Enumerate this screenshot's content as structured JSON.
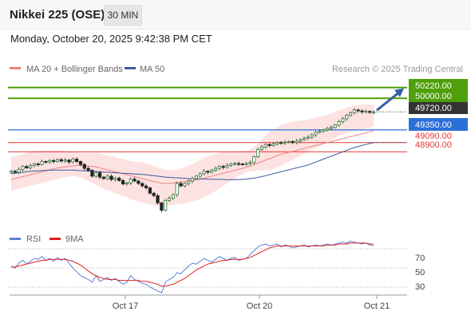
{
  "header": {
    "title": "Nikkei 225 (OSE)",
    "interval": "30 MIN",
    "datetime": "Monday, October 20, 2025 9:42:38 PM CET"
  },
  "legend": {
    "ma20_bb": "MA 20 + Bollinger Bands",
    "ma50": "MA 50",
    "credit": "Research © 2025 Trading Central",
    "rsi": "RSI",
    "ma9": "9MA"
  },
  "colors": {
    "resistance": "#4e9f0a",
    "pivot": "#2c6fd6",
    "support": "#e53935",
    "current": "#333333",
    "bollinger_fill": "#fde2e2",
    "ma20": "#f08080",
    "ma50": "#3b5a99",
    "rsi": "#5b7fd6",
    "rsi_ma": "#e02020",
    "arrow": "#2f5fa8"
  },
  "chart_data": [
    {
      "type": "candlestick",
      "title": "Nikkei 225 (OSE)",
      "ylim": [
        47350,
        50380
      ],
      "x_ticks": [
        "Oct 17",
        "Oct 20",
        "Oct 21"
      ],
      "levels": [
        {
          "label": "50220.00",
          "value": 50220,
          "kind": "resistance"
        },
        {
          "label": "50000.00",
          "value": 50000,
          "kind": "resistance"
        },
        {
          "label": "49720.00",
          "value": 49720,
          "kind": "current"
        },
        {
          "label": "49350.00",
          "value": 49350,
          "kind": "pivot"
        },
        {
          "label": "49090.00",
          "value": 49090,
          "kind": "support"
        },
        {
          "label": "48900.00",
          "value": 48900,
          "kind": "support"
        }
      ],
      "closes": [
        48500,
        48480,
        48540,
        48600,
        48570,
        48620,
        48650,
        48640,
        48700,
        48690,
        48720,
        48700,
        48740,
        48710,
        48730,
        48690,
        48750,
        48700,
        48640,
        48560,
        48520,
        48400,
        48470,
        48380,
        48350,
        48400,
        48330,
        48360,
        48310,
        48240,
        48260,
        48340,
        48300,
        48250,
        48200,
        48160,
        48050,
        48000,
        47850,
        47700,
        47900,
        47950,
        48020,
        48250,
        48200,
        48250,
        48300,
        48350,
        48400,
        48450,
        48500,
        48480,
        48520,
        48560,
        48600,
        48580,
        48620,
        48650,
        48660,
        48650,
        48640,
        48660,
        48680,
        48800,
        48950,
        49000,
        49050,
        49030,
        49060,
        49090,
        49080,
        49100,
        49110,
        49090,
        49120,
        49150,
        49180,
        49200,
        49250,
        49300,
        49320,
        49350,
        49380,
        49400,
        49450,
        49520,
        49580,
        49650,
        49700,
        49760,
        49740,
        49720,
        49730,
        49710,
        49720
      ],
      "ma20": [
        48330,
        48350,
        48370,
        48390,
        48410,
        48430,
        48450,
        48470,
        48490,
        48510,
        48530,
        48550,
        48570,
        48580,
        48590,
        48600,
        48610,
        48620,
        48620,
        48620,
        48610,
        48600,
        48590,
        48570,
        48550,
        48530,
        48510,
        48490,
        48470,
        48450,
        48430,
        48410,
        48390,
        48370,
        48350,
        48330,
        48310,
        48290,
        48270,
        48250,
        48250,
        48250,
        48260,
        48270,
        48280,
        48290,
        48300,
        48310,
        48320,
        48340,
        48360,
        48380,
        48400,
        48420,
        48440,
        48460,
        48480,
        48500,
        48520,
        48540,
        48560,
        48580,
        48610,
        48640,
        48670,
        48700,
        48730,
        48760,
        48790,
        48820,
        48850,
        48870,
        48890,
        48910,
        48930,
        48950,
        48970,
        48990,
        49010,
        49030,
        49050,
        49070,
        49090,
        49110,
        49130,
        49150,
        49170,
        49190,
        49210,
        49230,
        49250,
        49270,
        49290,
        49310,
        49340
      ],
      "ma50": [
        48450,
        48460,
        48470,
        48480,
        48490,
        48500,
        48505,
        48510,
        48515,
        48520,
        48525,
        48525,
        48525,
        48525,
        48525,
        48525,
        48525,
        48520,
        48515,
        48510,
        48505,
        48500,
        48495,
        48490,
        48485,
        48480,
        48475,
        48470,
        48465,
        48460,
        48455,
        48450,
        48445,
        48440,
        48435,
        48430,
        48420,
        48410,
        48400,
        48390,
        48380,
        48375,
        48370,
        48365,
        48360,
        48355,
        48350,
        48348,
        48346,
        48344,
        48342,
        48340,
        48338,
        48336,
        48334,
        48332,
        48330,
        48330,
        48330,
        48330,
        48335,
        48340,
        48350,
        48360,
        48375,
        48390,
        48410,
        48430,
        48450,
        48470,
        48490,
        48510,
        48530,
        48550,
        48570,
        48590,
        48610,
        48630,
        48660,
        48690,
        48720,
        48750,
        48780,
        48810,
        48840,
        48870,
        48900,
        48930,
        48960,
        48990,
        49010,
        49030,
        49050,
        49070,
        49090
      ],
      "bb_upper": [
        48800,
        48810,
        48830,
        48850,
        48880,
        48900,
        48910,
        48920,
        48930,
        48930,
        48930,
        48930,
        48930,
        48925,
        48920,
        48910,
        48900,
        48890,
        48880,
        48880,
        48880,
        48880,
        48880,
        48870,
        48850,
        48830,
        48810,
        48790,
        48770,
        48750,
        48730,
        48710,
        48700,
        48690,
        48680,
        48670,
        48640,
        48610,
        48580,
        48550,
        48530,
        48520,
        48520,
        48530,
        48550,
        48580,
        48610,
        48650,
        48690,
        48730,
        48770,
        48800,
        48830,
        48860,
        48880,
        48890,
        48900,
        48910,
        48910,
        48910,
        48910,
        48920,
        48950,
        49000,
        49070,
        49150,
        49230,
        49300,
        49360,
        49410,
        49450,
        49480,
        49500,
        49520,
        49530,
        49540,
        49550,
        49560,
        49580,
        49600,
        49620,
        49640,
        49660,
        49690,
        49720,
        49750,
        49780,
        49810,
        49830,
        49850,
        49860,
        49870,
        49870,
        49870,
        49870
      ],
      "bb_lower": [
        48100,
        48120,
        48140,
        48160,
        48180,
        48200,
        48220,
        48240,
        48260,
        48280,
        48300,
        48320,
        48340,
        48360,
        48380,
        48390,
        48400,
        48390,
        48370,
        48340,
        48300,
        48260,
        48220,
        48180,
        48140,
        48110,
        48080,
        48050,
        48020,
        47990,
        47960,
        47930,
        47900,
        47880,
        47860,
        47840,
        47820,
        47800,
        47790,
        47780,
        47790,
        47800,
        47810,
        47820,
        47830,
        47840,
        47860,
        47880,
        47900,
        47930,
        47960,
        48000,
        48050,
        48100,
        48150,
        48200,
        48250,
        48300,
        48350,
        48400,
        48440,
        48480,
        48500,
        48510,
        48520,
        48520,
        48520,
        48530,
        48550,
        48580,
        48620,
        48660,
        48700,
        48740,
        48780,
        48820,
        48860,
        48900,
        48940,
        48980,
        49020,
        49060,
        49100,
        49140,
        49180,
        49220,
        49250,
        49280,
        49300,
        49320,
        49340,
        49360,
        49380,
        49400,
        49420
      ]
    },
    {
      "type": "line",
      "title": "RSI",
      "ylim": [
        20,
        80
      ],
      "y_ticks": [
        70,
        50,
        30
      ],
      "series": [
        {
          "name": "RSI",
          "values": [
            52,
            50,
            55,
            58,
            54,
            57,
            60,
            59,
            62,
            58,
            60,
            57,
            61,
            58,
            60,
            55,
            50,
            46,
            42,
            40,
            38,
            35,
            42,
            36,
            38,
            40,
            37,
            39,
            36,
            33,
            35,
            42,
            38,
            36,
            34,
            33,
            30,
            28,
            26,
            24,
            35,
            38,
            40,
            45,
            44,
            48,
            52,
            55,
            54,
            57,
            60,
            58,
            56,
            59,
            62,
            60,
            58,
            60,
            61,
            58,
            59,
            60,
            64,
            68,
            72,
            74,
            75,
            73,
            74,
            75,
            72,
            74,
            73,
            71,
            72,
            73,
            74,
            72,
            73,
            74,
            73,
            74,
            75,
            74,
            75,
            76,
            77,
            76,
            78,
            77,
            76,
            75,
            76,
            74,
            73
          ]
        },
        {
          "name": "9MA",
          "values": [
            51,
            51,
            52,
            53,
            54,
            55,
            56,
            57,
            58,
            58,
            59,
            59,
            59,
            59,
            59,
            58,
            57,
            55,
            53,
            50,
            47,
            44,
            42,
            40,
            39,
            38,
            38,
            38,
            37,
            37,
            37,
            37,
            37,
            37,
            36,
            36,
            35,
            34,
            33,
            31,
            31,
            32,
            33,
            35,
            37,
            39,
            42,
            45,
            48,
            50,
            52,
            54,
            55,
            56,
            57,
            58,
            58,
            59,
            59,
            59,
            59,
            60,
            61,
            63,
            65,
            67,
            69,
            71,
            72,
            73,
            73,
            73,
            73,
            73,
            73,
            73,
            73,
            73,
            73,
            73,
            73,
            73,
            74,
            74,
            74,
            75,
            75,
            75,
            76,
            76,
            76,
            76,
            76,
            75,
            75
          ]
        }
      ]
    }
  ]
}
